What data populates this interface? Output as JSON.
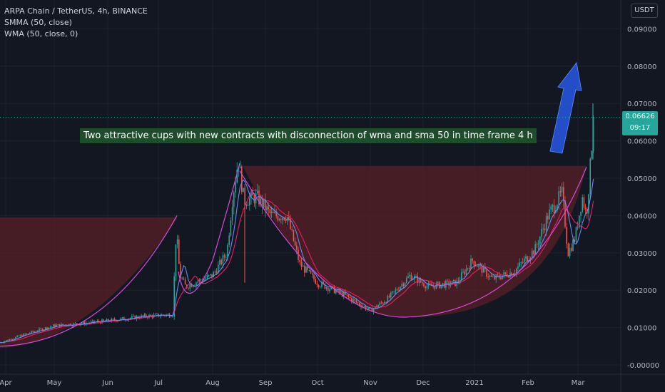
{
  "legend": {
    "symbol": "ARPA Chain / TetherUS, 4h, BINANCE",
    "indicator1": "SMMA (50, close)",
    "indicator2": "WMA (50, close, 0)"
  },
  "unit_button": "USDT",
  "current_price": {
    "value": "0.06626",
    "countdown": "09:17",
    "color": "#26a69a"
  },
  "annotation": "Two attractive cups with new contracts with disconnection of wma and sma 50 in time frame 4 h",
  "colors": {
    "background": "#131722",
    "up": "#26a69a",
    "down": "#ef5350",
    "smma": "#e91e63",
    "wma": "#6a8cf0",
    "cup": "#d34cd8",
    "zone": "#5d1f27",
    "arrow": "#2962ff"
  },
  "chart_data": {
    "type": "candlestick",
    "symbol": "ARPAUSDT",
    "timeframe": "4h",
    "y_ticks": [
      0.09,
      0.08,
      0.07,
      0.06,
      0.05,
      0.04,
      0.03,
      0.02,
      0.01,
      0.0
    ],
    "y_tick_labels": [
      "0.09000",
      "0.08000",
      "0.07000",
      "0.06000",
      "0.05000",
      "0.04000",
      "0.03000",
      "0.02000",
      "0.01000",
      "-0.00000"
    ],
    "x_ticks": [
      "Apr",
      "May",
      "Jun",
      "Jul",
      "Aug",
      "Sep",
      "Oct",
      "Nov",
      "Dec",
      "2021",
      "Feb",
      "Mar"
    ],
    "ylim": [
      -0.001,
      0.098
    ],
    "close_path": [
      [
        "Apr",
        0.006
      ],
      [
        "May",
        0.0105
      ],
      [
        "Jun",
        0.0118
      ],
      [
        "Jul",
        0.0135
      ],
      [
        "Jul",
        0.038
      ],
      [
        "Jul",
        0.022
      ],
      [
        "Aug",
        0.025
      ],
      [
        "Aug",
        0.055
      ],
      [
        "Sep",
        0.043
      ],
      [
        "Sep",
        0.037
      ],
      [
        "Oct",
        0.021
      ],
      [
        "Nov",
        0.0145
      ],
      [
        "Dec",
        0.022
      ],
      [
        "2021",
        0.021
      ],
      [
        "Feb",
        0.03
      ],
      [
        "Feb",
        0.045
      ],
      [
        "Mar",
        0.034
      ],
      [
        "Mar",
        0.06
      ],
      [
        "Mar",
        0.06626
      ]
    ],
    "cup_curves": [
      {
        "from": [
          "Apr",
          0.005
        ],
        "bottom": [
          "May",
          0.01
        ],
        "to": [
          "Jul",
          0.04
        ]
      },
      {
        "from": [
          "Aug",
          0.052
        ],
        "bottom": [
          "Nov",
          0.013
        ],
        "to": [
          "Mar",
          0.053
        ]
      }
    ],
    "resistance_zones": [
      {
        "from": "Apr",
        "to": "Jul",
        "top": 0.0395,
        "bottom": 0.0
      },
      {
        "from": "Aug",
        "to": "Mar",
        "top": 0.0533,
        "bottom": 0.0
      }
    ],
    "last_price": 0.06626
  }
}
